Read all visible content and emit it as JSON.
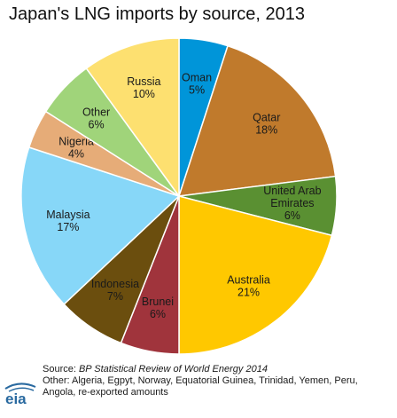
{
  "chart_data": {
    "type": "pie",
    "title": "Japan's LNG imports by source, 2013",
    "slices": [
      {
        "label": [
          "Oman"
        ],
        "value": 5,
        "value_label": "5%",
        "color": "#0095d9"
      },
      {
        "label": [
          "Qatar"
        ],
        "value": 18,
        "value_label": "18%",
        "color": "#c07a2c"
      },
      {
        "label": [
          "United Arab",
          "Emirates"
        ],
        "value": 6,
        "value_label": "6%",
        "color": "#5a9032"
      },
      {
        "label": [
          "Australia"
        ],
        "value": 21,
        "value_label": "21%",
        "color": "#ffc800"
      },
      {
        "label": [
          "Brunei"
        ],
        "value": 6,
        "value_label": "6%",
        "color": "#a0343c"
      },
      {
        "label": [
          "Indonesia"
        ],
        "value": 7,
        "value_label": "7%",
        "color": "#6b4e0e"
      },
      {
        "label": [
          "Malaysia"
        ],
        "value": 17,
        "value_label": "17%",
        "color": "#87d7f8"
      },
      {
        "label": [
          "Nigeria"
        ],
        "value": 4,
        "value_label": "4%",
        "color": "#e6ac78"
      },
      {
        "label": [
          "Other"
        ],
        "value": 6,
        "value_label": "6%",
        "color": "#a0d47a"
      },
      {
        "label": [
          "Russia"
        ],
        "value": 10,
        "value_label": "10%",
        "color": "#fde070"
      }
    ]
  },
  "footer": {
    "source_prefix": "Source: ",
    "source_title": "BP Statistical Review of World Energy 2014",
    "other_line1": "Other: Algeria, Egpyt, Norway, Equatorial Guinea, Trinidad, Yemen, Peru,",
    "other_line2": "Angola, re-exported amounts"
  },
  "logo": {
    "text": "eia",
    "icon": "eia-logo-icon"
  }
}
